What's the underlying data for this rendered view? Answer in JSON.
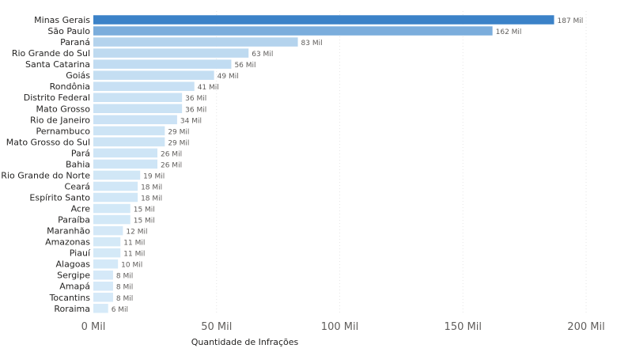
{
  "chart_data": {
    "type": "bar",
    "orientation": "horizontal",
    "categories": [
      "Minas Gerais",
      "São Paulo",
      "Paraná",
      "Rio Grande do Sul",
      "Santa Catarina",
      "Goiás",
      "Rondônia",
      "Distrito Federal",
      "Mato Grosso",
      "Rio de Janeiro",
      "Pernambuco",
      "Mato Grosso do Sul",
      "Pará",
      "Bahia",
      "Rio Grande do Norte",
      "Ceará",
      "Espírito Santo",
      "Acre",
      "Paraíba",
      "Maranhão",
      "Amazonas",
      "Piauí",
      "Alagoas",
      "Sergipe",
      "Amapá",
      "Tocantins",
      "Roraima"
    ],
    "values": [
      187,
      162,
      83,
      63,
      56,
      49,
      41,
      36,
      36,
      34,
      29,
      29,
      26,
      26,
      19,
      18,
      18,
      15,
      15,
      12,
      11,
      11,
      10,
      8,
      8,
      8,
      6
    ],
    "data_labels": [
      "187 Mil",
      "162 Mil",
      "83 Mil",
      "63 Mil",
      "56 Mil",
      "49 Mil",
      "41 Mil",
      "36 Mil",
      "36 Mil",
      "34 Mil",
      "29 Mil",
      "29 Mil",
      "26 Mil",
      "26 Mil",
      "19 Mil",
      "18 Mil",
      "18 Mil",
      "15 Mil",
      "15 Mil",
      "12 Mil",
      "11 Mil",
      "11 Mil",
      "10 Mil",
      "8 Mil",
      "8 Mil",
      "8 Mil",
      "6 Mil"
    ],
    "unit": "Mil",
    "xlabel": "Quantidade de Infrações",
    "ylabel": "",
    "xlim": [
      0,
      200
    ],
    "x_ticks": [
      0,
      50,
      100,
      150,
      200
    ],
    "x_tick_labels": [
      "0 Mil",
      "50 Mil",
      "100 Mil",
      "150 Mil",
      "200 Mil"
    ],
    "grid": true,
    "legend": "none",
    "colors": {
      "max": "#3b82c8",
      "min": "#d6eaf8"
    }
  }
}
